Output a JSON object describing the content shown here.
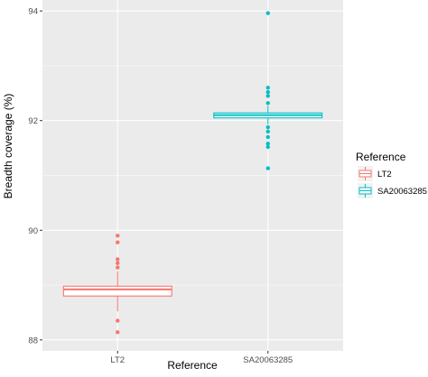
{
  "chart_data": {
    "type": "box",
    "title": "",
    "xlabel": "Reference",
    "ylabel": "Breadth coverage (%)",
    "ylim": [
      87.8,
      94.2
    ],
    "yticks": [
      88,
      90,
      92,
      94
    ],
    "ytick_labels": [
      "88",
      "90",
      "92",
      "94"
    ],
    "categories": [
      "LT2",
      "SA20063285"
    ],
    "grid": true,
    "panel_background": "#ebebeb",
    "legend": {
      "title": "Reference",
      "position": "right",
      "entries": [
        {
          "label": "LT2",
          "color": "#f8766d"
        },
        {
          "label": "SA20063285",
          "color": "#00bfc4"
        }
      ]
    },
    "series": [
      {
        "category": "LT2",
        "color": "#f8766d",
        "q1": 88.8,
        "median": 88.92,
        "q3": 88.98,
        "whisker_low": 88.52,
        "whisker_high": 89.25,
        "outliers": [
          89.9,
          89.78,
          89.47,
          89.4,
          89.32,
          88.35,
          88.14
        ]
      },
      {
        "category": "SA20063285",
        "color": "#00bfc4",
        "q1": 92.05,
        "median": 92.1,
        "q3": 92.14,
        "whisker_low": 91.93,
        "whisker_high": 92.27,
        "outliers": [
          93.96,
          92.6,
          92.52,
          92.45,
          92.32,
          91.88,
          91.8,
          91.7,
          91.58,
          91.52,
          91.13
        ]
      }
    ]
  }
}
